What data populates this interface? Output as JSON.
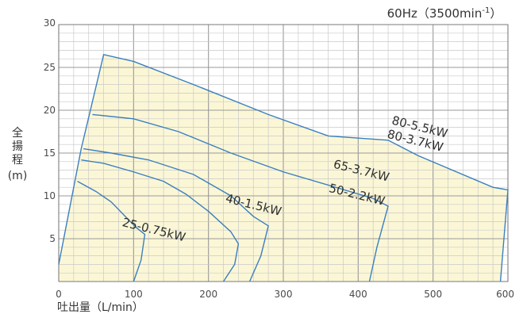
{
  "chart_data": {
    "type": "line",
    "frequency_label": "60Hz（3500min",
    "frequency_sup": "-1",
    "frequency_close": "）",
    "xlabel": "吐出量（L/min）",
    "ylabel_chars": [
      "全",
      "揚",
      "程"
    ],
    "ylabel_unit": "(m)",
    "xlim": [
      0,
      600
    ],
    "ylim": [
      0,
      30
    ],
    "x_ticks": [
      0,
      100,
      200,
      300,
      400,
      500,
      600
    ],
    "y_ticks": [
      5,
      10,
      15,
      20,
      25,
      30
    ],
    "region_fill": "#fbf7d6",
    "line_color": "#3b7fbf",
    "grid_major_color": "#9a9a9a",
    "grid_minor_color": "#c9c9c9",
    "envelope": [
      [
        0,
        2
      ],
      [
        30,
        15.5
      ],
      [
        60,
        26.5
      ],
      [
        100,
        25.7
      ],
      [
        180,
        23
      ],
      [
        280,
        19.5
      ],
      [
        360,
        17
      ],
      [
        440,
        16.5
      ],
      [
        480,
        14.7
      ],
      [
        580,
        11
      ],
      [
        600,
        10.7
      ],
      [
        590,
        0
      ]
    ],
    "series": [
      {
        "name": "25-0.75kW",
        "label_at": [
          14,
          6.5
        ],
        "label_angle": 14,
        "points": [
          [
            25,
            11.7
          ],
          [
            50,
            10.5
          ],
          [
            70,
            9.3
          ],
          [
            90,
            7.5
          ],
          [
            105,
            6.2
          ],
          [
            115,
            5.5
          ],
          [
            110,
            2.5
          ],
          [
            100,
            0
          ]
        ]
      },
      {
        "name": "40-1.5kW",
        "label_at": [
          37,
          9.3
        ],
        "label_angle": 14,
        "points": [
          [
            30,
            14.2
          ],
          [
            60,
            13.8
          ],
          [
            100,
            12.8
          ],
          [
            140,
            11.7
          ],
          [
            170,
            10.2
          ],
          [
            200,
            8.2
          ],
          [
            230,
            5.8
          ],
          [
            240,
            4.4
          ],
          [
            235,
            2
          ],
          [
            220,
            0
          ]
        ]
      },
      {
        "name": "50-2.2kW",
        "label_at": [
          60,
          10.5
        ],
        "label_angle": 14,
        "points": [
          [
            33,
            15.5
          ],
          [
            70,
            15
          ],
          [
            120,
            14.2
          ],
          [
            180,
            12.5
          ],
          [
            230,
            10
          ],
          [
            260,
            7.6
          ],
          [
            280,
            6.5
          ],
          [
            270,
            3
          ],
          [
            255,
            0
          ]
        ]
      },
      {
        "name": "65-3.7kW",
        "label_at": [
          61,
          13.3
        ],
        "label_angle": 14,
        "points": [
          [
            45,
            19.5
          ],
          [
            100,
            19
          ],
          [
            160,
            17.5
          ],
          [
            230,
            15
          ],
          [
            300,
            12.8
          ],
          [
            370,
            11
          ],
          [
            420,
            9.7
          ],
          [
            440,
            8.8
          ],
          [
            425,
            4
          ],
          [
            415,
            0
          ]
        ]
      },
      {
        "name": "80-3.7kW",
        "label_at": [
          73,
          16.8
        ],
        "label_angle": 14,
        "label_only": true,
        "points": []
      },
      {
        "name": "80-5.5kW",
        "label_at": [
          74,
          18.4
        ],
        "label_angle": 14,
        "label_only": true,
        "points": []
      }
    ]
  }
}
